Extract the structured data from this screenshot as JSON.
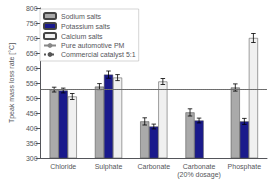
{
  "chart_data": {
    "type": "bar",
    "categories": [
      "Chloride",
      "Sulphate",
      "Carbonate",
      "Carbonate\n(20% dosage)",
      "Phosphate"
    ],
    "series": [
      {
        "name": "Sodium salts",
        "color": "#aaaaaa",
        "values": [
          528,
          538,
          422,
          452,
          535
        ],
        "errors": [
          8,
          10,
          12,
          12,
          12
        ]
      },
      {
        "name": "Potassium salts",
        "color": "#1a1a8c",
        "values": [
          525,
          578,
          405,
          425,
          422
        ],
        "errors": [
          8,
          12,
          8,
          8,
          10
        ]
      },
      {
        "name": "Calcium salts",
        "color": "#f0f0f0",
        "values": [
          505,
          568,
          555,
          null,
          700
        ],
        "errors": [
          10,
          10,
          10,
          null,
          15
        ]
      }
    ],
    "reference_lines": [
      {
        "name": "Pure automotive PM",
        "value": 528,
        "color": "#888888",
        "line_style": "solid"
      },
      {
        "name": "Commercial catalyst 5:1",
        "value": 528,
        "color": "#555555",
        "line_style": "dotted"
      }
    ],
    "ylabel": "Tpeak mass loss rate [°C]",
    "ylim": [
      300,
      800
    ],
    "yticks": [
      300,
      350,
      400,
      450,
      500,
      550,
      600,
      650,
      700,
      750,
      800
    ],
    "legend": "upper left",
    "grid": false
  }
}
